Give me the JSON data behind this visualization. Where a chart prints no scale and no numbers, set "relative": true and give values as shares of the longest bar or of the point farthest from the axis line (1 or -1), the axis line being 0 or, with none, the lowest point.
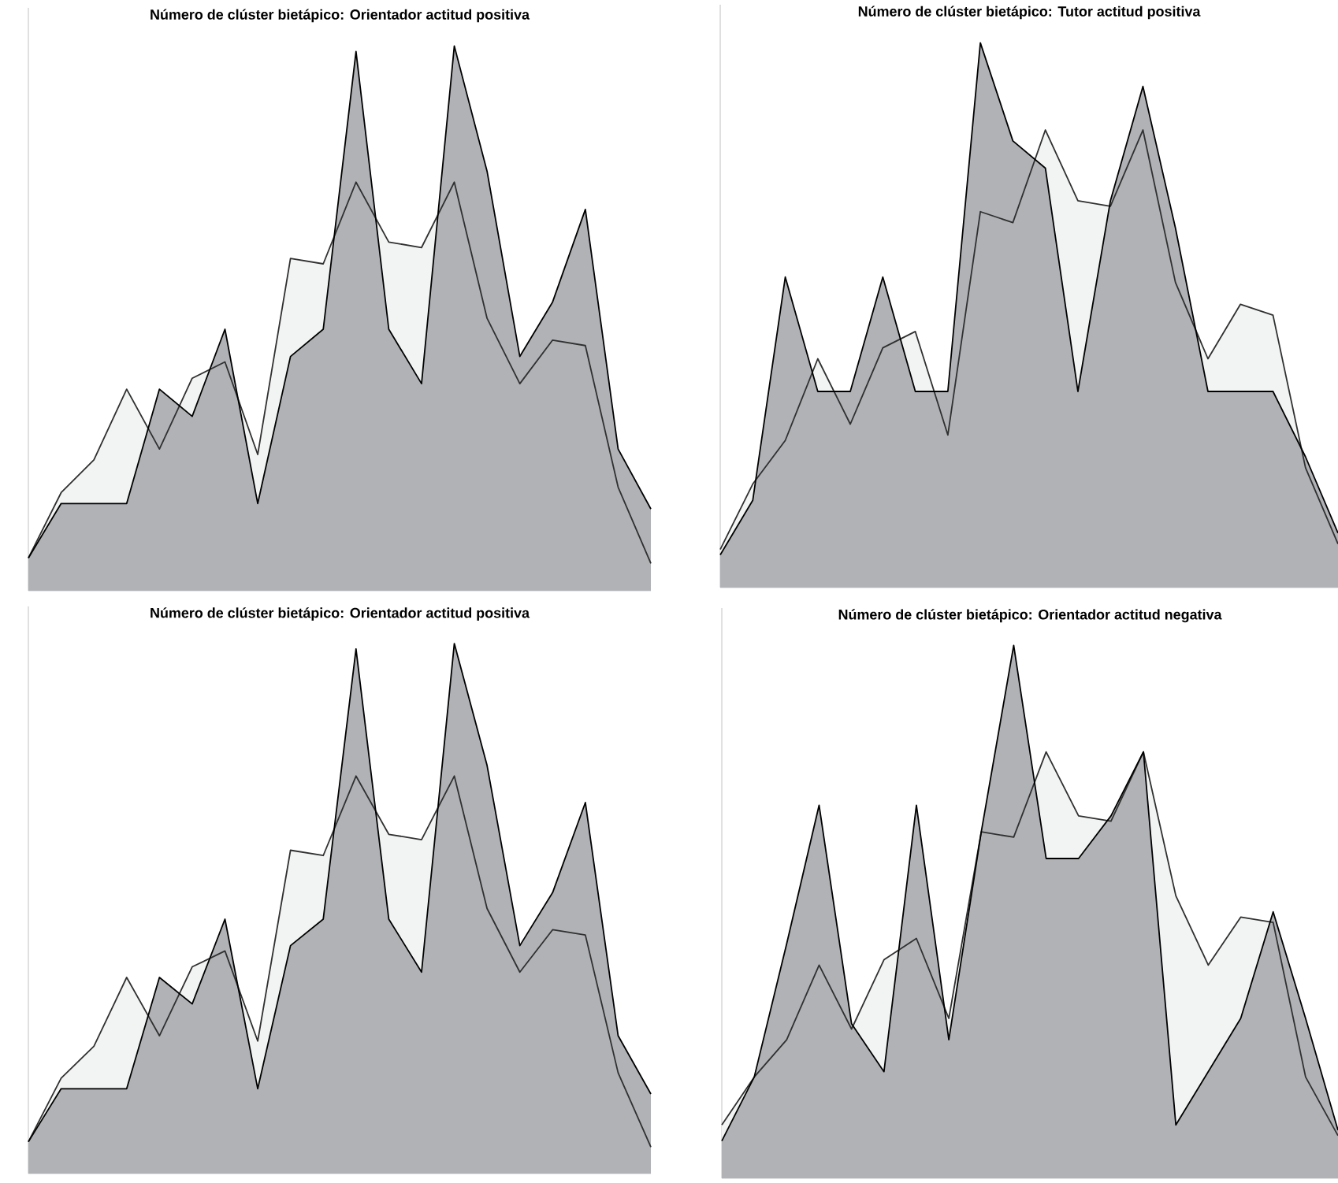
{
  "chart_data": [
    {
      "type": "area",
      "title": "Número de clúster bietápico: Orientador actitud positiva",
      "relative": true,
      "categories": [
        null,
        null,
        null,
        null,
        null,
        null,
        null,
        null,
        null,
        null,
        null,
        null,
        null,
        null,
        null,
        null,
        null,
        null,
        null,
        null
      ],
      "series": [
        {
          "color": "#f2f3f3",
          "values": [
            0.06,
            0.18,
            0.24,
            0.37,
            0.26,
            0.39,
            0.42,
            0.25,
            0.61,
            0.6,
            0.75,
            0.64,
            0.63,
            0.75,
            0.5,
            0.38,
            0.46,
            0.45,
            0.19,
            0.05
          ]
        },
        {
          "color": "#b0b2b6",
          "values": [
            0.06,
            0.16,
            0.16,
            0.16,
            0.37,
            0.32,
            0.48,
            0.16,
            0.43,
            0.48,
            0.99,
            0.48,
            0.38,
            1.0,
            0.77,
            0.43,
            0.53,
            0.7,
            0.26,
            0.15
          ]
        }
      ]
    },
    {
      "type": "area",
      "title": "Número de clúster bietápico: Tutor actitud positiva",
      "relative": true,
      "categories": [
        null,
        null,
        null,
        null,
        null,
        null,
        null,
        null,
        null,
        null,
        null,
        null,
        null,
        null,
        null,
        null,
        null,
        null,
        null,
        null
      ],
      "series": [
        {
          "color": "#f2f3f3",
          "values": [
            0.07,
            0.19,
            0.27,
            0.42,
            0.3,
            0.44,
            0.47,
            0.28,
            0.69,
            0.67,
            0.84,
            0.71,
            0.7,
            0.84,
            0.56,
            0.42,
            0.52,
            0.5,
            0.22,
            0.08
          ]
        },
        {
          "color": "#b0b2b6",
          "values": [
            0.06,
            0.16,
            0.57,
            0.36,
            0.36,
            0.57,
            0.36,
            0.36,
            1.0,
            0.82,
            0.77,
            0.36,
            0.71,
            0.92,
            0.66,
            0.36,
            0.36,
            0.36,
            0.24,
            0.1
          ]
        }
      ]
    },
    {
      "type": "area",
      "title": "Número de clúster bietápico: Orientador actitud positiva",
      "relative": true,
      "categories": [
        null,
        null,
        null,
        null,
        null,
        null,
        null,
        null,
        null,
        null,
        null,
        null,
        null,
        null,
        null,
        null,
        null,
        null,
        null,
        null
      ],
      "series": [
        {
          "color": "#f2f3f3",
          "values": [
            0.06,
            0.18,
            0.24,
            0.37,
            0.26,
            0.39,
            0.42,
            0.25,
            0.61,
            0.6,
            0.75,
            0.64,
            0.63,
            0.75,
            0.5,
            0.38,
            0.46,
            0.45,
            0.19,
            0.05
          ]
        },
        {
          "color": "#b0b2b6",
          "values": [
            0.06,
            0.16,
            0.16,
            0.16,
            0.37,
            0.32,
            0.48,
            0.16,
            0.43,
            0.48,
            0.99,
            0.48,
            0.38,
            1.0,
            0.77,
            0.43,
            0.53,
            0.7,
            0.26,
            0.15
          ]
        }
      ]
    },
    {
      "type": "area",
      "title": "Número de clúster bietápico: Orientador actitud negativa",
      "relative": true,
      "categories": [
        null,
        null,
        null,
        null,
        null,
        null,
        null,
        null,
        null,
        null,
        null,
        null,
        null,
        null,
        null,
        null,
        null,
        null,
        null,
        null
      ],
      "series": [
        {
          "color": "#f2f3f3",
          "values": [
            0.1,
            0.19,
            0.26,
            0.4,
            0.28,
            0.41,
            0.45,
            0.3,
            0.65,
            0.64,
            0.8,
            0.68,
            0.67,
            0.8,
            0.53,
            0.4,
            0.49,
            0.48,
            0.19,
            0.08
          ]
        },
        {
          "color": "#b0b2b6",
          "values": [
            0.07,
            0.19,
            0.44,
            0.7,
            0.29,
            0.2,
            0.7,
            0.26,
            0.65,
            1.0,
            0.6,
            0.6,
            0.68,
            0.8,
            0.1,
            0.2,
            0.3,
            0.5,
            0.3,
            0.09
          ]
        }
      ]
    }
  ]
}
